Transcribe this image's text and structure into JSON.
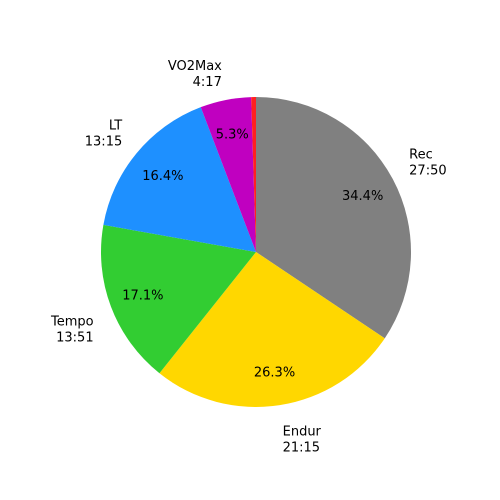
{
  "chart_data": {
    "type": "pie",
    "categories": [
      "Rec",
      "Endur",
      "Tempo",
      "LT",
      "VO2Max",
      ""
    ],
    "durations": [
      "27:50",
      "21:15",
      "13:51",
      "13:15",
      "4:17",
      ""
    ],
    "values": [
      34.4,
      26.3,
      17.1,
      16.4,
      5.3,
      0.5
    ],
    "percent_labels": [
      "34.4%",
      "26.3%",
      "17.1%",
      "16.4%",
      "5.3%",
      ""
    ],
    "colors": [
      "#808080",
      "#ffd700",
      "#32cd32",
      "#1e90ff",
      "#c000c0",
      "#ff2020"
    ],
    "start_angle_deg": 90,
    "direction": "clockwise",
    "title": "",
    "legend": "none"
  }
}
